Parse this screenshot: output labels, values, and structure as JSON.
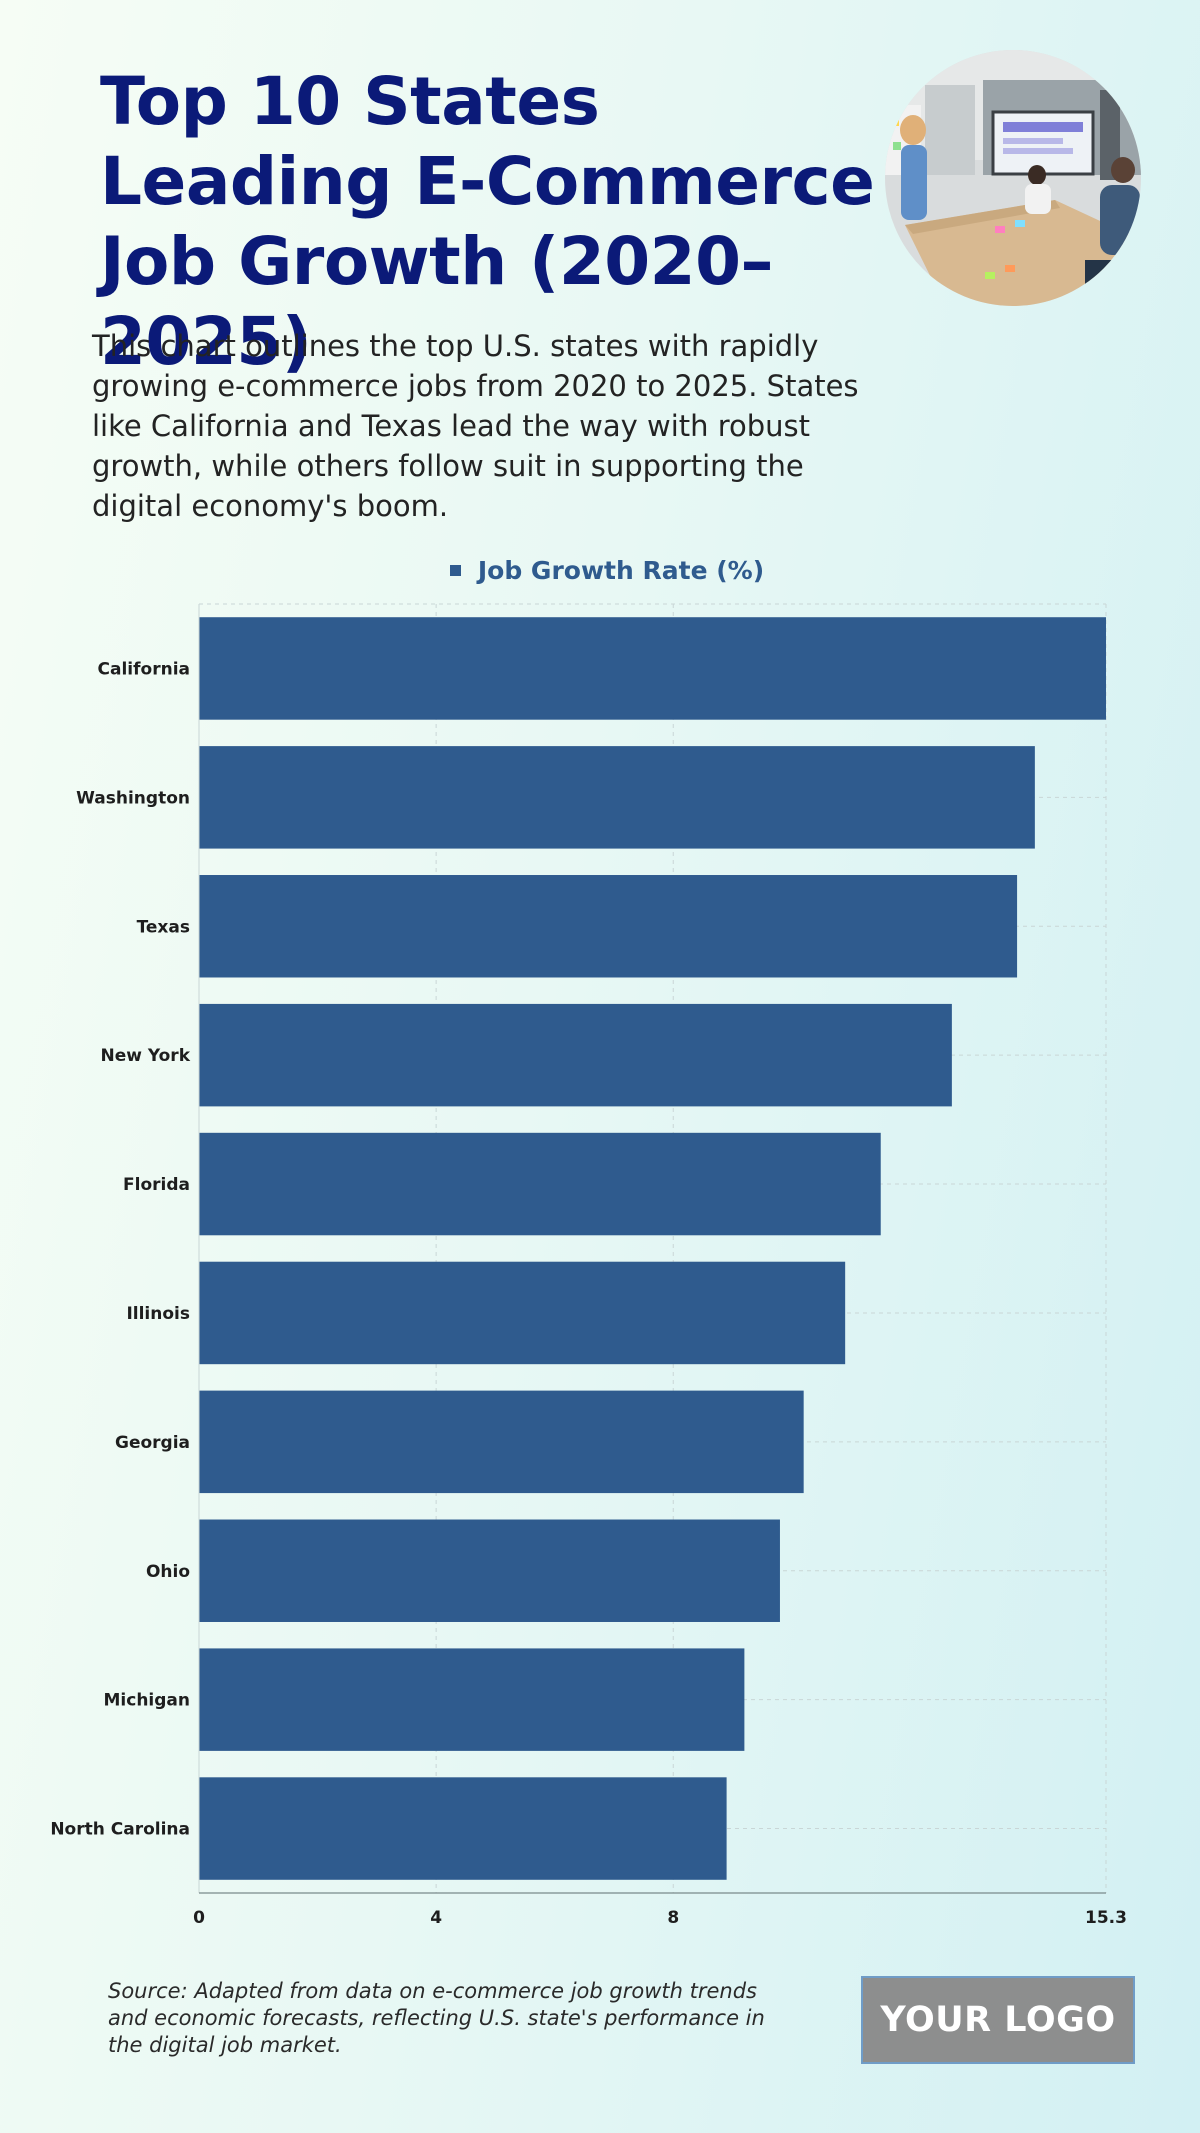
{
  "title": "Top 10 States Leading E-Commerce Job Growth (2020–2025)",
  "subtitle": "This chart outlines the top U.S. states with rapidly growing e-commerce jobs from 2020 to 2025. States like California and Texas lead the way with robust growth, while others follow suit in supporting the digital economy's boom.",
  "source": "Source: Adapted from data on e-commerce job growth trends and economic forecasts, reflecting U.S. state's performance in the digital job market.",
  "logo_text": "YOUR LOGO",
  "photo_icon": "meeting-room-photo",
  "colors": {
    "bar": "#2f5b8e",
    "title": "#0b1a78",
    "legend_text": "#2f5b8e"
  },
  "chart_data": {
    "type": "bar",
    "orientation": "horizontal",
    "categories": [
      "California",
      "Washington",
      "Texas",
      "New York",
      "Florida",
      "Illinois",
      "Georgia",
      "Ohio",
      "Michigan",
      "North Carolina"
    ],
    "series": [
      {
        "name": "Job Growth Rate (%)",
        "values": [
          15.3,
          14.1,
          13.8,
          12.7,
          11.5,
          10.9,
          10.2,
          9.8,
          9.2,
          8.9
        ]
      }
    ],
    "xlim": [
      0,
      15.3
    ],
    "xticks": [
      0,
      4,
      8,
      15.3
    ],
    "xtick_labels": [
      "0",
      "4",
      "8",
      "15.3"
    ],
    "grid": true,
    "legend_position": "top-center",
    "xlabel": "",
    "ylabel": ""
  }
}
